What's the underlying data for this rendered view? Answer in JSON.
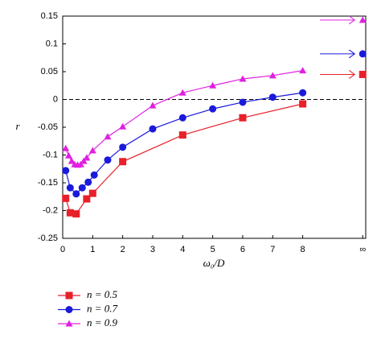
{
  "chart_data": {
    "type": "line",
    "x_label": "ω₀/D",
    "y_label": "r",
    "xlim": [
      0,
      10.1
    ],
    "ylim": [
      -0.25,
      0.15
    ],
    "xticks": [
      0,
      1,
      2,
      3,
      4,
      5,
      6,
      7,
      8,
      {
        "value": 10,
        "label": "∞"
      }
    ],
    "yticks": [
      -0.25,
      -0.2,
      -0.15,
      -0.1,
      -0.05,
      0,
      0.05,
      0.1,
      0.15
    ],
    "hline": 0,
    "series": [
      {
        "name": "n = 0.5",
        "color": "#e8202a",
        "marker": "square",
        "x": [
          0.1,
          0.25,
          0.45,
          0.8,
          1,
          2,
          4,
          6,
          8
        ],
        "values": [
          -0.178,
          -0.204,
          -0.206,
          -0.179,
          -0.169,
          -0.112,
          -0.064,
          -0.033,
          -0.008
        ],
        "limit": {
          "x": 10,
          "value": 0.045
        }
      },
      {
        "name": "n = 0.7",
        "color": "#1a1adb",
        "marker": "circle",
        "x": [
          0.1,
          0.25,
          0.45,
          0.65,
          0.85,
          1.05,
          1.5,
          2,
          3,
          4,
          5,
          6,
          7,
          8
        ],
        "values": [
          -0.128,
          -0.159,
          -0.17,
          -0.159,
          -0.149,
          -0.136,
          -0.109,
          -0.086,
          -0.053,
          -0.033,
          -0.017,
          -0.005,
          0.004,
          0.012
        ],
        "limit": {
          "x": 10,
          "value": 0.082
        }
      },
      {
        "name": "n = 0.9",
        "color": "#e020e0",
        "marker": "triangle",
        "x": [
          0.1,
          0.2,
          0.3,
          0.4,
          0.5,
          0.6,
          0.7,
          0.8,
          1,
          1.5,
          2,
          3,
          4,
          5,
          6,
          7,
          8
        ],
        "values": [
          -0.088,
          -0.101,
          -0.111,
          -0.117,
          -0.118,
          -0.117,
          -0.111,
          -0.105,
          -0.092,
          -0.067,
          -0.049,
          -0.011,
          0.012,
          0.025,
          0.037,
          0.043,
          0.052
        ],
        "limit": {
          "x": 10,
          "value": 0.143
        }
      }
    ]
  }
}
